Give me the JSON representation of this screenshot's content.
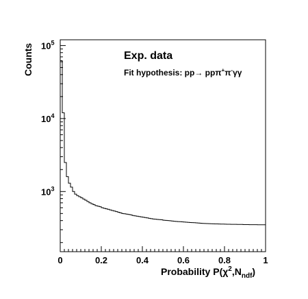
{
  "chart_data": {
    "type": "histogram",
    "xlabel": {
      "main": "Probability P(χ",
      "sup": "2",
      "mid": ",N",
      "sub": "ndf",
      "end": ")"
    },
    "ylabel": "Counts",
    "annotations": {
      "title": "Exp. data",
      "fit_prefix": "Fit hypothesis: pp",
      "arrow": "→",
      "fit_final": " ppπ",
      "plus": "+",
      "pi": "π",
      "minus": "-",
      "gammas": "γγ"
    },
    "xlim": [
      0,
      1
    ],
    "ylim": [
      150,
      120000
    ],
    "yscale": "log",
    "x_ticks": [
      "0",
      "0.2",
      "0.4",
      "0.6",
      "0.8",
      "1"
    ],
    "y_ticks": [
      {
        "base": "10",
        "exp": "3",
        "value": 1000
      },
      {
        "base": "10",
        "exp": "4",
        "value": 10000
      },
      {
        "base": "10",
        "exp": "5",
        "value": 100000
      }
    ],
    "bin_width": 0.01,
    "values": [
      62000,
      12000,
      2500,
      1600,
      1300,
      1150,
      1000,
      920,
      880,
      850,
      820,
      790,
      760,
      730,
      700,
      680,
      660,
      640,
      630,
      620,
      600,
      590,
      580,
      570,
      560,
      550,
      540,
      530,
      520,
      510,
      500,
      495,
      490,
      485,
      480,
      470,
      465,
      460,
      455,
      450,
      445,
      440,
      435,
      430,
      425,
      420,
      418,
      415,
      412,
      410,
      405,
      402,
      400,
      398,
      395,
      392,
      390,
      388,
      386,
      384,
      382,
      380,
      378,
      376,
      375,
      374,
      372,
      370,
      368,
      366,
      365,
      364,
      363,
      362,
      361,
      360,
      360,
      359,
      358,
      358,
      357,
      356,
      356,
      355,
      355,
      355,
      354,
      354,
      354,
      353,
      353,
      353,
      352,
      352,
      352,
      352,
      351,
      351,
      351,
      351
    ],
    "last_bin_drop": 160
  }
}
